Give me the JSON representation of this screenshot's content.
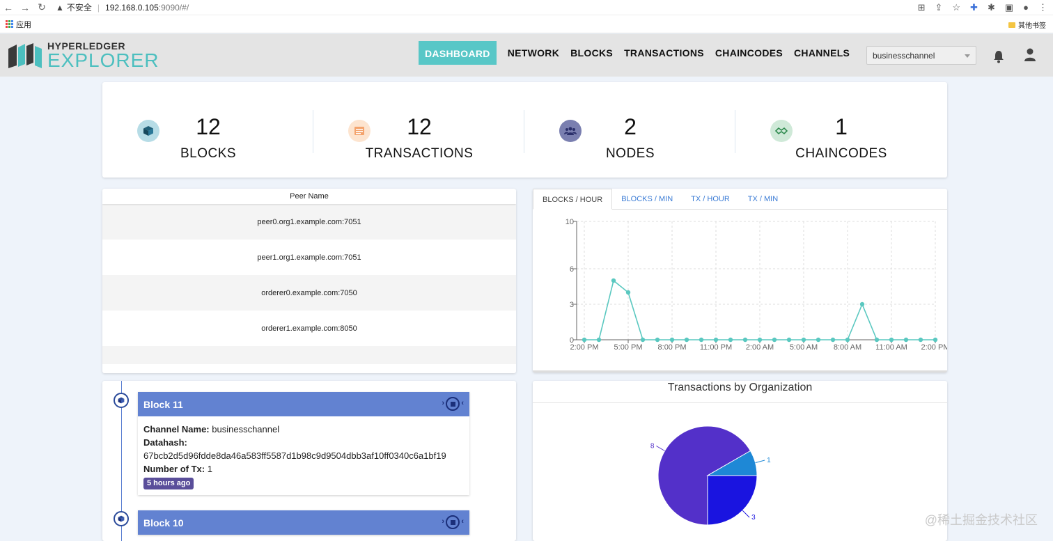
{
  "browser": {
    "security_label": "不安全",
    "url_host": "192.168.0.105",
    "url_rest": ":9090/#/",
    "apps_label": "应用",
    "other_bookmarks": "其他书签"
  },
  "header": {
    "logo_line1": "HYPERLEDGER",
    "logo_line2": "EXPLORER",
    "nav": [
      "DASHBOARD",
      "NETWORK",
      "BLOCKS",
      "TRANSACTIONS",
      "CHAINCODES",
      "CHANNELS"
    ],
    "channel": "businesschannel"
  },
  "stats": [
    {
      "value": "12",
      "label": "BLOCKS",
      "icon": "cube-icon",
      "color": "#b6dce6"
    },
    {
      "value": "12",
      "label": "TRANSACTIONS",
      "icon": "list-icon",
      "color": "#fde4cf"
    },
    {
      "value": "2",
      "label": "NODES",
      "icon": "users-icon",
      "color": "#7a7fb0"
    },
    {
      "value": "1",
      "label": "CHAINCODES",
      "icon": "handshake-icon",
      "color": "#cfe9d8"
    }
  ],
  "peers": {
    "header": "Peer Name",
    "rows": [
      "peer0.org1.example.com:7051",
      "peer1.org1.example.com:7051",
      "orderer0.example.com:7050",
      "orderer1.example.com:8050"
    ]
  },
  "chart_tabs": [
    "BLOCKS / HOUR",
    "BLOCKS / MIN",
    "TX / HOUR",
    "TX / MIN"
  ],
  "chart_data": {
    "type": "line",
    "x": [
      "2:00 PM",
      "3:00 PM",
      "4:00 PM",
      "5:00 PM",
      "6:00 PM",
      "7:00 PM",
      "8:00 PM",
      "9:00 PM",
      "10:00 PM",
      "11:00 PM",
      "12:00 AM",
      "1:00 AM",
      "2:00 AM",
      "3:00 AM",
      "4:00 AM",
      "5:00 AM",
      "6:00 AM",
      "7:00 AM",
      "8:00 AM",
      "9:00 AM",
      "10:00 AM",
      "11:00 AM",
      "12:00 PM",
      "1:00 PM",
      "2:00 PM"
    ],
    "values": [
      0,
      0,
      5,
      4,
      0,
      0,
      0,
      0,
      0,
      0,
      0,
      0,
      0,
      0,
      0,
      0,
      0,
      0,
      0,
      3,
      0,
      0,
      0,
      0,
      0
    ],
    "x_tick_labels": [
      "2:00 PM",
      "5:00 PM",
      "8:00 PM",
      "11:00 PM",
      "2:00 AM",
      "5:00 AM",
      "8:00 AM",
      "11:00 AM",
      "2:00 PM"
    ],
    "y_ticks": [
      0,
      3,
      6,
      10
    ],
    "ylim": [
      0,
      10
    ],
    "grid": true,
    "color": "#5ac8c0"
  },
  "blocks": [
    {
      "title": "Block 11",
      "channel_label": "Channel Name:",
      "channel": "businesschannel",
      "datahash_label": "Datahash:",
      "datahash": "67bcb2d5d96fdde8da46a583ff5587d1b98c9d9504dbb3af10ff0340c6a1bf19",
      "ntx_label": "Number of Tx:",
      "ntx": "1",
      "time": "5 hours ago"
    },
    {
      "title": "Block 10"
    }
  ],
  "org_chart": {
    "title": "Transactions by Organization",
    "chart_data": {
      "type": "pie",
      "labels": [
        "8",
        "1",
        "3"
      ],
      "values": [
        8,
        1,
        3
      ],
      "colors": [
        "#5330c9",
        "#1e88d6",
        "#1a14e0"
      ]
    }
  },
  "watermark": "@稀土掘金技术社区"
}
